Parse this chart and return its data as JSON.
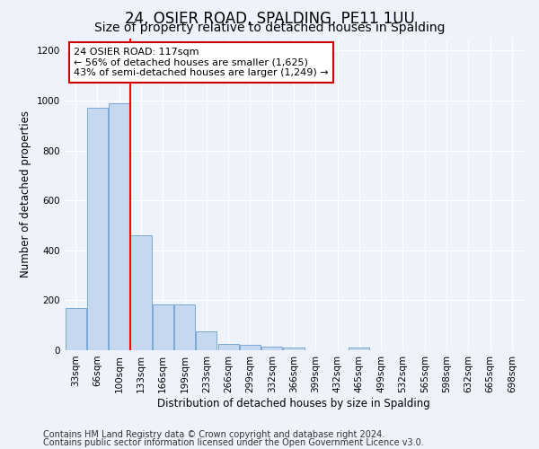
{
  "title": "24, OSIER ROAD, SPALDING, PE11 1UU",
  "subtitle": "Size of property relative to detached houses in Spalding",
  "xlabel": "Distribution of detached houses by size in Spalding",
  "ylabel": "Number of detached properties",
  "categories": [
    "33sqm",
    "66sqm",
    "100sqm",
    "133sqm",
    "166sqm",
    "199sqm",
    "233sqm",
    "266sqm",
    "299sqm",
    "332sqm",
    "366sqm",
    "399sqm",
    "432sqm",
    "465sqm",
    "499sqm",
    "532sqm",
    "565sqm",
    "598sqm",
    "632sqm",
    "665sqm",
    "698sqm"
  ],
  "values": [
    170,
    970,
    990,
    460,
    185,
    185,
    75,
    25,
    20,
    15,
    10,
    0,
    0,
    10,
    0,
    0,
    0,
    0,
    0,
    0,
    0
  ],
  "bar_color": "#c5d8f0",
  "bar_edge_color": "#7aa8d4",
  "red_line_index": 2.5,
  "annotation_text": "24 OSIER ROAD: 117sqm\n← 56% of detached houses are smaller (1,625)\n43% of semi-detached houses are larger (1,249) →",
  "annotation_box_color": "#ffffff",
  "annotation_box_edge_color": "#cc0000",
  "ylim": [
    0,
    1250
  ],
  "yticks": [
    0,
    200,
    400,
    600,
    800,
    1000,
    1200
  ],
  "footer_line1": "Contains HM Land Registry data © Crown copyright and database right 2024.",
  "footer_line2": "Contains public sector information licensed under the Open Government Licence v3.0.",
  "background_color": "#eef2fa",
  "plot_bg_color": "#eef2fa",
  "grid_color": "#ffffff",
  "title_fontsize": 12,
  "subtitle_fontsize": 10,
  "label_fontsize": 8.5,
  "tick_fontsize": 7.5,
  "footer_fontsize": 7,
  "annotation_fontsize": 8
}
